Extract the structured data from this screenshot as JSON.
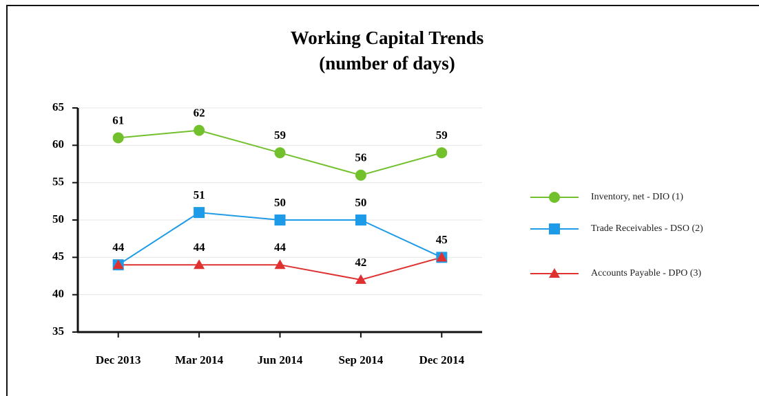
{
  "chart_data": {
    "type": "line",
    "title": "Working Capital Trends",
    "subtitle": "(number of days)",
    "categories": [
      "Dec 2013",
      "Mar 2014",
      "Jun 2014",
      "Sep 2014",
      "Dec 2014"
    ],
    "series": [
      {
        "name": "Inventory, net - DIO (1)",
        "color": "#72c02c",
        "marker": "circle",
        "values": [
          61,
          62,
          59,
          56,
          59
        ],
        "value_labels": [
          61,
          62,
          59,
          56,
          59
        ]
      },
      {
        "name": "Trade Receivables - DSO (2)",
        "color": "#1e9be8",
        "marker": "square",
        "values": [
          44,
          51,
          50,
          50,
          45
        ],
        "value_labels": [
          44,
          51,
          50,
          50,
          45
        ]
      },
      {
        "name": "Accounts Payable - DPO (3)",
        "color": "#e03131",
        "marker": "triangle",
        "values": [
          44,
          44,
          44,
          42,
          45
        ],
        "value_labels": [
          null,
          44,
          44,
          42,
          null
        ]
      }
    ],
    "ylim": [
      35,
      65
    ],
    "yticks": [
      35,
      40,
      45,
      50,
      55,
      60,
      65
    ],
    "grid": true,
    "legend": "right"
  }
}
